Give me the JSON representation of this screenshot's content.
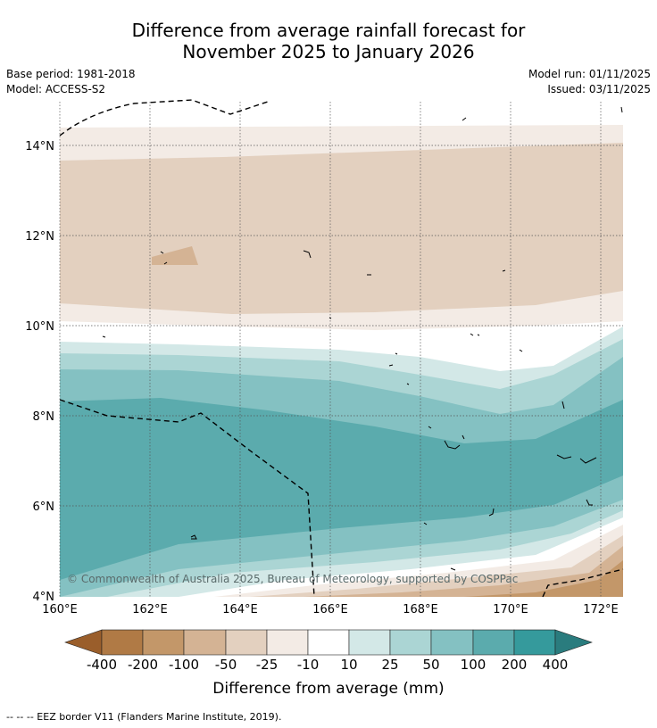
{
  "title": {
    "line1": "Difference from average rainfall forecast for",
    "line2": "November 2025 to January 2026"
  },
  "meta": {
    "base_period": "Base period: 1981-2018",
    "model": "Model: ACCESS-S2",
    "model_run": "Model run: 01/11/2025",
    "issued": "Issued: 03/11/2025"
  },
  "map": {
    "lon_labels": [
      "160°E",
      "162°E",
      "164°E",
      "166°E",
      "168°E",
      "170°E",
      "172°E"
    ],
    "lat_labels": [
      "14°N",
      "12°N",
      "10°N",
      "8°N",
      "6°N",
      "4°N"
    ],
    "copyright": "© Commonwealth of Australia 2025, Bureau of Meteorology, supported by COSPPac"
  },
  "colorbar": {
    "title": "Difference from average (mm)",
    "labels": [
      "-400",
      "-200",
      "-100",
      "-50",
      "-25",
      "-10",
      "10",
      "25",
      "50",
      "100",
      "200",
      "400"
    ],
    "colors": {
      "lt_400": "#9a5e2b",
      "n400_n200": "#b07a45",
      "n200_n100": "#c39769",
      "n100_n50": "#d4b394",
      "n50_n25": "#e3d0bf",
      "n25_n10": "#f3ebe5",
      "n10_10": "#ffffff",
      "p10_25": "#d3e8e7",
      "p25_50": "#abd5d4",
      "p50_100": "#84c1c2",
      "p100_200": "#5babad",
      "p200_400": "#359a9c",
      "gt_400": "#2a7c7e"
    }
  },
  "footer": "--  --  -- EEZ border V11 (Flanders Marine Institute, 2019)."
}
